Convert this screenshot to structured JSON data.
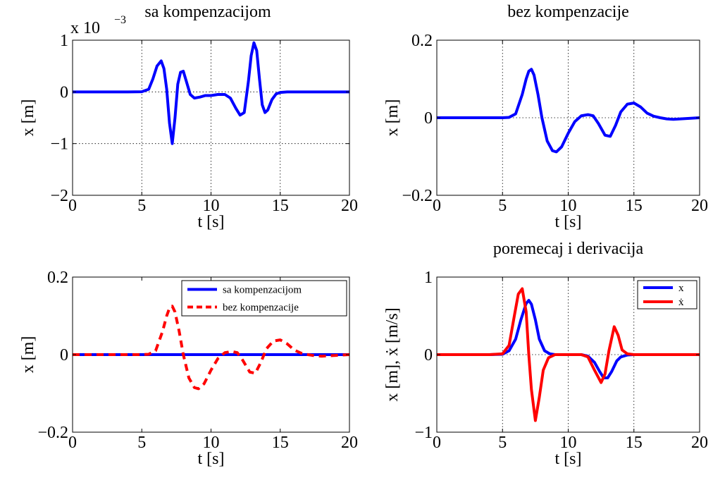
{
  "chart_data": [
    {
      "type": "line",
      "title": "sa kompenzacijom",
      "xlabel": "t [s]",
      "ylabel": "x [m]",
      "exponent": "x 10",
      "exponent_power": "−3",
      "xlim": [
        0,
        20
      ],
      "ylim": [
        -2,
        1
      ],
      "xticks": [
        0,
        5,
        10,
        15,
        20
      ],
      "xtick_labels": [
        "0",
        "5",
        "10",
        "15",
        "20"
      ],
      "yticks": [
        -2,
        -1,
        0,
        1
      ],
      "ytick_labels": [
        "−2",
        "−1",
        "0",
        "1"
      ],
      "grid": true,
      "series": [
        {
          "color": "#0000ff",
          "dash": "",
          "x": [
            0,
            2,
            4,
            5,
            5.5,
            5.8,
            6.1,
            6.4,
            6.6,
            6.8,
            7.0,
            7.2,
            7.4,
            7.6,
            7.8,
            8.0,
            8.2,
            8.5,
            8.8,
            9.2,
            9.6,
            10,
            10.5,
            11,
            11.4,
            11.8,
            12.1,
            12.4,
            12.7,
            12.9,
            13.1,
            13.3,
            13.5,
            13.7,
            13.9,
            14.1,
            14.4,
            14.7,
            15,
            15.5,
            16,
            17,
            18,
            20
          ],
          "y": [
            0,
            0,
            0,
            0.003,
            0.05,
            0.25,
            0.5,
            0.6,
            0.45,
            0.05,
            -0.6,
            -1.0,
            -0.5,
            0.15,
            0.38,
            0.4,
            0.22,
            -0.05,
            -0.12,
            -0.1,
            -0.07,
            -0.07,
            -0.05,
            -0.05,
            -0.12,
            -0.32,
            -0.45,
            -0.4,
            0.2,
            0.7,
            0.95,
            0.8,
            0.25,
            -0.25,
            -0.4,
            -0.35,
            -0.15,
            -0.04,
            -0.01,
            0,
            0,
            0,
            0,
            0
          ]
        }
      ]
    },
    {
      "type": "line",
      "title": "bez kompenzacije",
      "xlabel": "t [s]",
      "ylabel": "x [m]",
      "xlim": [
        0,
        20
      ],
      "ylim": [
        -0.2,
        0.2
      ],
      "xticks": [
        0,
        5,
        10,
        15,
        20
      ],
      "xtick_labels": [
        "0",
        "5",
        "10",
        "15",
        "20"
      ],
      "yticks": [
        -0.2,
        0,
        0.2
      ],
      "ytick_labels": [
        "−0.2",
        "0",
        "0.2"
      ],
      "grid": true,
      "series": [
        {
          "color": "#0000ff",
          "dash": "",
          "x": [
            0,
            3,
            5,
            5.5,
            6,
            6.5,
            6.8,
            7.0,
            7.2,
            7.4,
            7.7,
            8.0,
            8.4,
            8.8,
            9.1,
            9.5,
            10,
            10.5,
            11,
            11.5,
            11.9,
            12.3,
            12.8,
            13.2,
            13.6,
            14,
            14.5,
            15,
            15.5,
            16,
            16.5,
            17,
            17.5,
            18,
            19,
            20
          ],
          "y": [
            0,
            0,
            0,
            0.001,
            0.01,
            0.06,
            0.1,
            0.12,
            0.125,
            0.11,
            0.06,
            0.0,
            -0.06,
            -0.085,
            -0.088,
            -0.075,
            -0.04,
            -0.01,
            0.005,
            0.008,
            0.005,
            -0.015,
            -0.045,
            -0.048,
            -0.02,
            0.015,
            0.035,
            0.038,
            0.028,
            0.012,
            0.004,
            0,
            -0.003,
            -0.004,
            -0.002,
            0
          ]
        }
      ]
    },
    {
      "type": "line",
      "title": "",
      "xlabel": "t [s]",
      "ylabel": "x [m]",
      "xlim": [
        0,
        20
      ],
      "ylim": [
        -0.2,
        0.2
      ],
      "xticks": [
        0,
        5,
        10,
        15,
        20
      ],
      "xtick_labels": [
        "0",
        "5",
        "10",
        "15",
        "20"
      ],
      "yticks": [
        -0.2,
        0,
        0.2
      ],
      "ytick_labels": [
        "−0.2",
        "0",
        "0.2"
      ],
      "grid": false,
      "legend": "top-right",
      "series": [
        {
          "name": "sa kompenzacijom",
          "color": "#0000ff",
          "dash": "",
          "x": [
            0,
            20
          ],
          "y": [
            0,
            0
          ]
        },
        {
          "name": "bez kompenzacije",
          "color": "#ff0000",
          "dash": "10 7",
          "x": [
            0,
            3,
            5,
            5.5,
            6,
            6.5,
            6.8,
            7.0,
            7.2,
            7.4,
            7.7,
            8.0,
            8.4,
            8.8,
            9.1,
            9.5,
            10,
            10.5,
            11,
            11.5,
            11.9,
            12.3,
            12.8,
            13.2,
            13.6,
            14,
            14.5,
            15,
            15.5,
            16,
            16.5,
            17,
            17.5,
            18,
            19,
            20
          ],
          "y": [
            0,
            0,
            0,
            0.001,
            0.01,
            0.06,
            0.1,
            0.12,
            0.125,
            0.11,
            0.06,
            0.0,
            -0.06,
            -0.085,
            -0.088,
            -0.075,
            -0.04,
            -0.01,
            0.005,
            0.008,
            0.005,
            -0.015,
            -0.045,
            -0.048,
            -0.02,
            0.015,
            0.035,
            0.038,
            0.028,
            0.012,
            0.004,
            0,
            -0.003,
            -0.004,
            -0.002,
            0
          ]
        }
      ]
    },
    {
      "type": "line",
      "title": "poremecaj i derivacija",
      "xlabel": "t [s]",
      "ylabel": "x [m], ẋ [m/s]",
      "xlim": [
        0,
        20
      ],
      "ylim": [
        -1,
        1
      ],
      "xticks": [
        0,
        5,
        10,
        15,
        20
      ],
      "xtick_labels": [
        "0",
        "5",
        "10",
        "15",
        "20"
      ],
      "yticks": [
        -1,
        0,
        1
      ],
      "ytick_labels": [
        "−1",
        "0",
        "1"
      ],
      "grid": true,
      "legend": "top-right",
      "series": [
        {
          "name": "x",
          "color": "#0000ff",
          "dash": "",
          "x": [
            0,
            4,
            5,
            5.5,
            6,
            6.4,
            6.8,
            7.0,
            7.2,
            7.5,
            7.8,
            8.2,
            8.6,
            9,
            10,
            11,
            11.5,
            12,
            12.4,
            12.7,
            13.0,
            13.3,
            13.7,
            14,
            14.5,
            15,
            20
          ],
          "y": [
            0,
            0,
            0.005,
            0.05,
            0.2,
            0.45,
            0.66,
            0.7,
            0.65,
            0.45,
            0.2,
            0.05,
            0.01,
            0,
            0,
            0,
            -0.02,
            -0.1,
            -0.22,
            -0.3,
            -0.3,
            -0.22,
            -0.08,
            -0.03,
            -0.005,
            0,
            0
          ]
        },
        {
          "name": "ẋ",
          "color": "#ff0000",
          "dash": "",
          "x": [
            0,
            4,
            5,
            5.5,
            5.9,
            6.2,
            6.5,
            6.8,
            7.0,
            7.2,
            7.5,
            7.8,
            8.1,
            8.5,
            9,
            10,
            11,
            11.5,
            12,
            12.5,
            12.8,
            13.1,
            13.5,
            13.8,
            14.1,
            14.5,
            15,
            20
          ],
          "y": [
            0,
            0,
            0.01,
            0.12,
            0.5,
            0.78,
            0.85,
            0.55,
            0.0,
            -0.45,
            -0.85,
            -0.55,
            -0.2,
            -0.04,
            0,
            0,
            0,
            -0.03,
            -0.2,
            -0.36,
            -0.25,
            0.05,
            0.36,
            0.25,
            0.06,
            0.01,
            0,
            0
          ]
        }
      ]
    }
  ]
}
